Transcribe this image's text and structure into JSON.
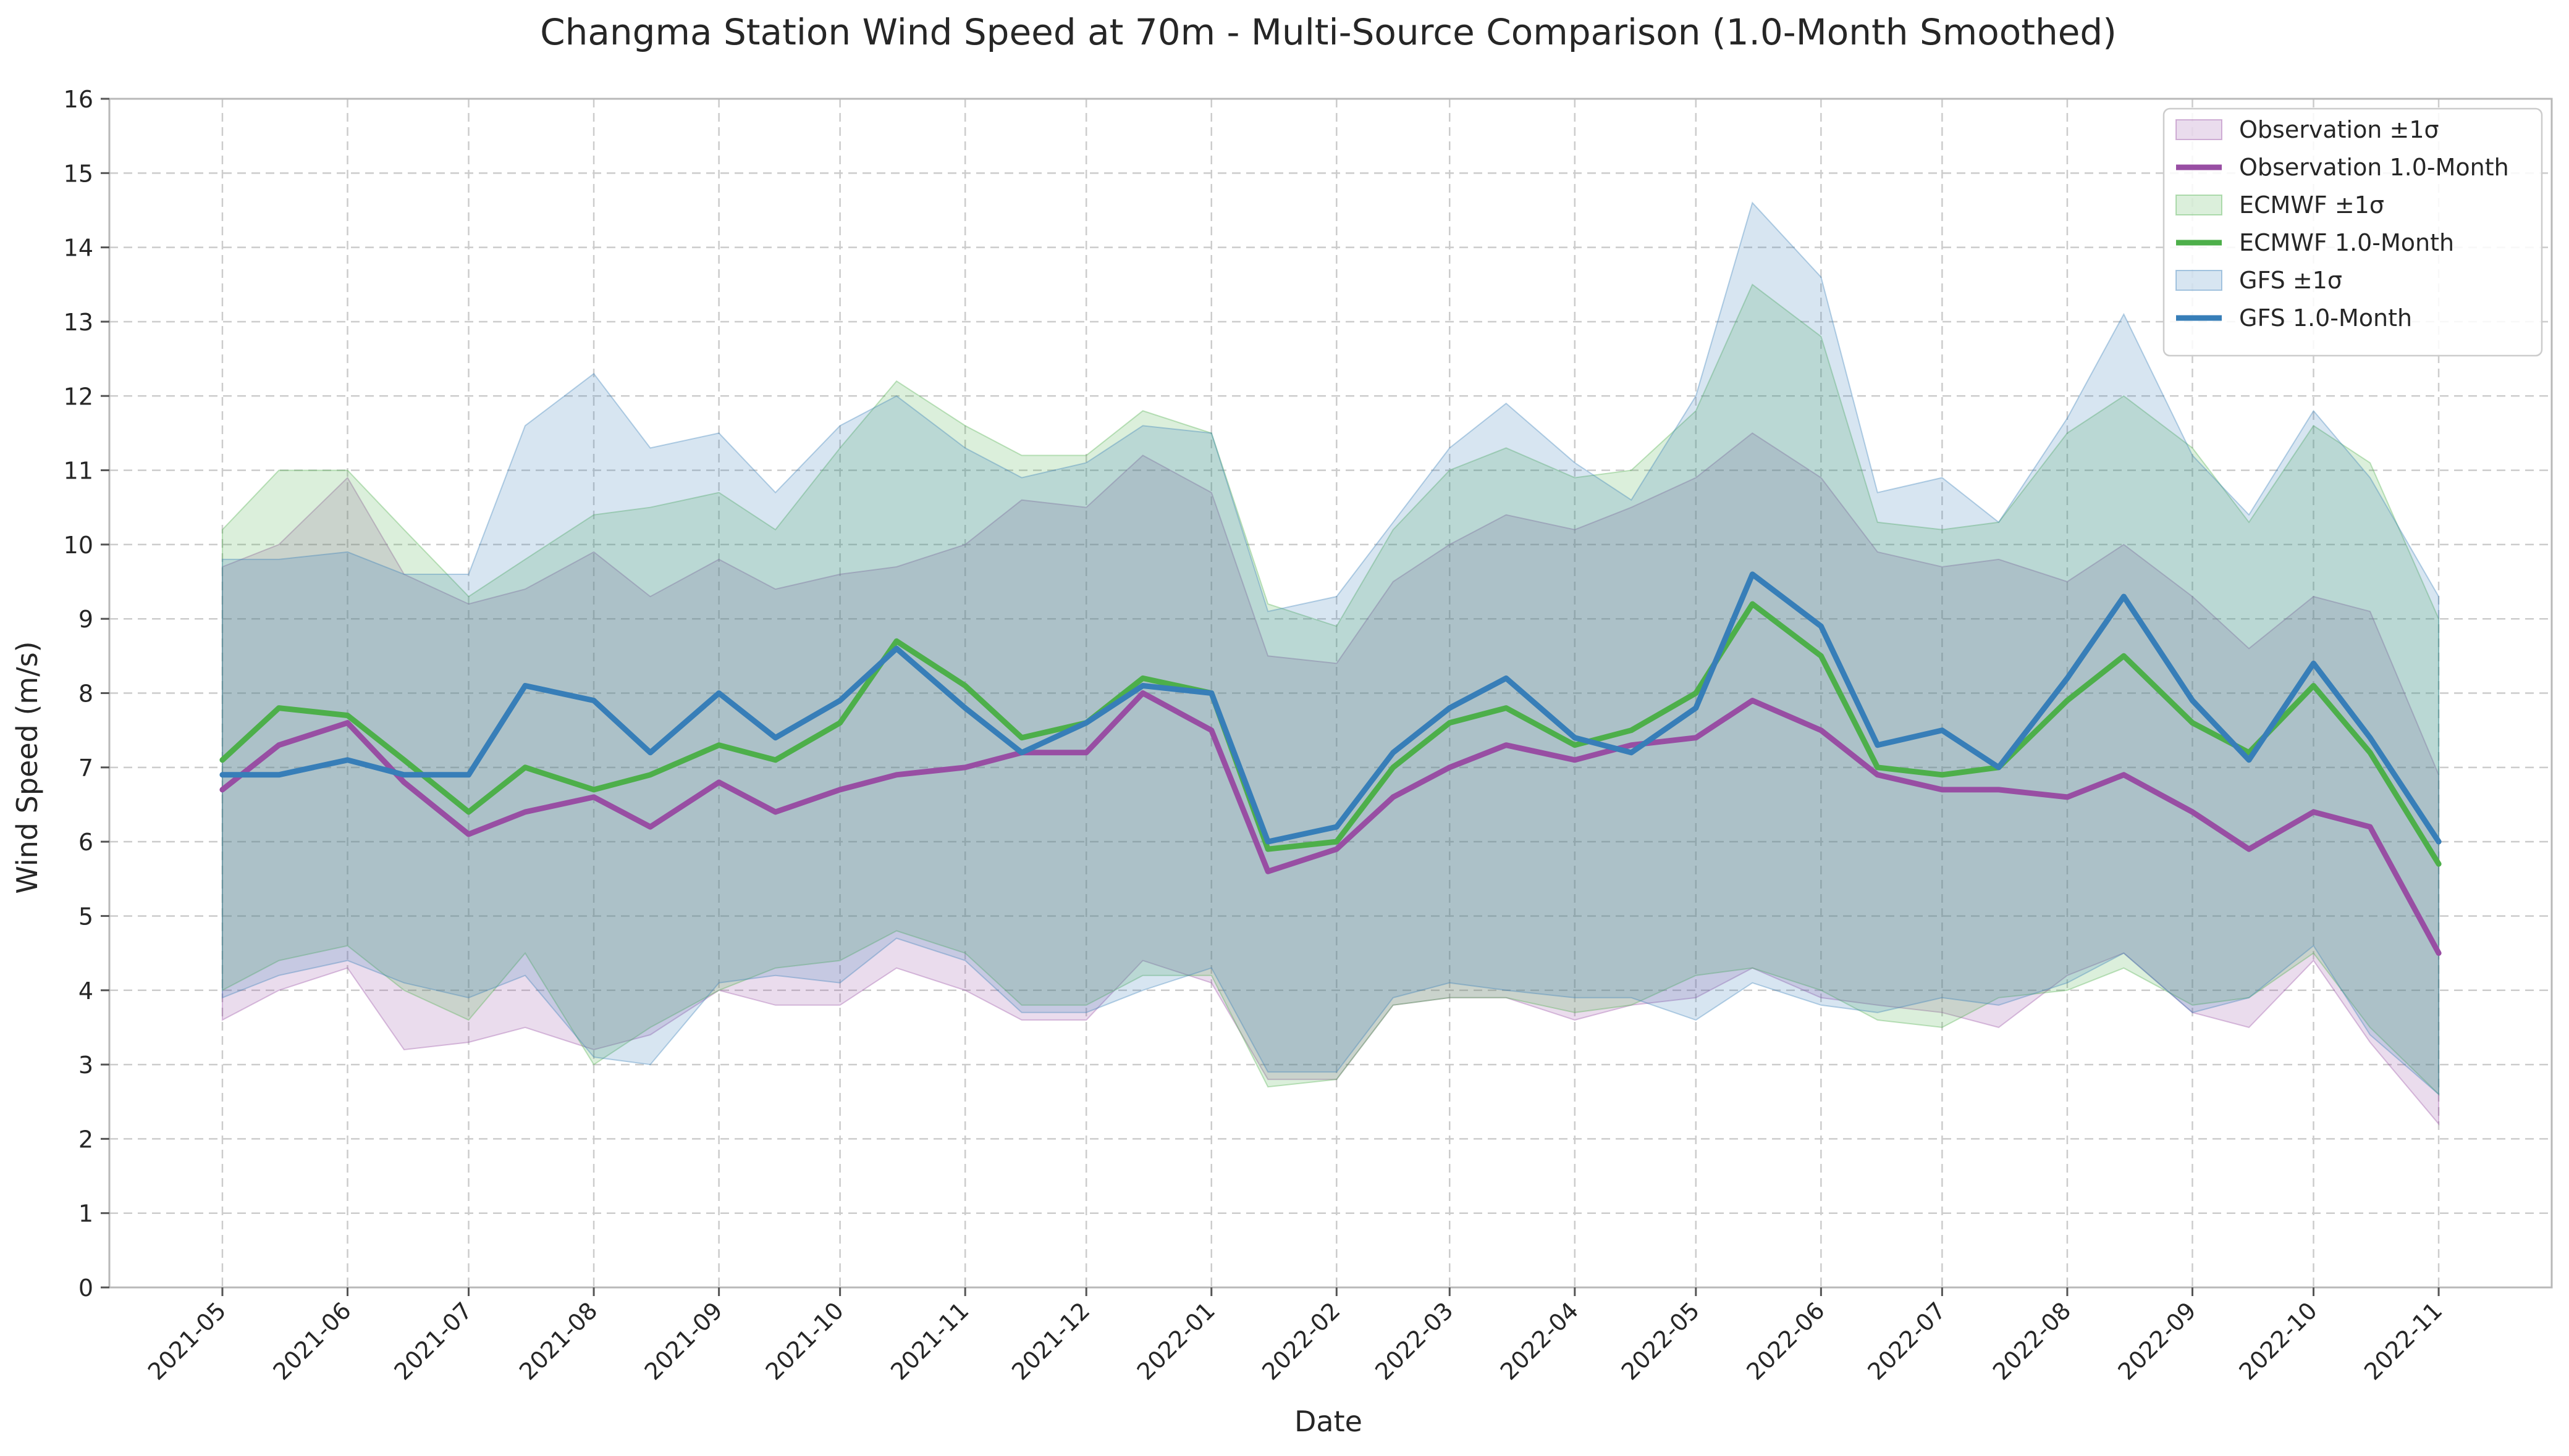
{
  "chart_data": {
    "type": "line",
    "title": "Changma Station Wind Speed at 70m - Multi-Source Comparison (1.0-Month Smoothed)",
    "xlabel": "Date",
    "ylabel": "Wind Speed (m/s)",
    "ylim": [
      0,
      16
    ],
    "yticks": [
      0,
      1,
      2,
      3,
      4,
      5,
      6,
      7,
      8,
      9,
      10,
      11,
      12,
      13,
      14,
      15,
      16
    ],
    "xlim": [
      "2021-04-03",
      "2022-11-29"
    ],
    "xticks": [
      "2021-05-01",
      "2021-06-01",
      "2021-07-01",
      "2021-08-01",
      "2021-09-01",
      "2021-10-01",
      "2021-11-01",
      "2021-12-01",
      "2022-01-01",
      "2022-02-01",
      "2022-03-01",
      "2022-04-01",
      "2022-05-01",
      "2022-06-01",
      "2022-07-01",
      "2022-08-01",
      "2022-09-01",
      "2022-10-01",
      "2022-11-01"
    ],
    "xtick_labels": [
      "2021-05",
      "2021-06",
      "2021-07",
      "2021-08",
      "2021-09",
      "2021-10",
      "2021-11",
      "2021-12",
      "2022-01",
      "2022-02",
      "2022-03",
      "2022-04",
      "2022-05",
      "2022-06",
      "2022-07",
      "2022-08",
      "2022-09",
      "2022-10",
      "2022-11"
    ],
    "grid": true,
    "legend_position": "top-right",
    "legend": [
      "Observation ±1σ",
      "Observation 1.0-Month",
      "ECMWF ±1σ",
      "ECMWF 1.0-Month",
      "GFS ±1σ",
      "GFS 1.0-Month"
    ],
    "series": [
      {
        "name": "Observation 1.0-Month",
        "band_name": "Observation ±1σ",
        "color": "#984ea3",
        "x": [
          "2021-05-01",
          "2021-05-15",
          "2021-06-01",
          "2021-06-15",
          "2021-07-01",
          "2021-07-15",
          "2021-08-01",
          "2021-08-15",
          "2021-09-01",
          "2021-09-15",
          "2021-10-01",
          "2021-10-15",
          "2021-11-01",
          "2021-11-15",
          "2021-12-01",
          "2021-12-15",
          "2022-01-01",
          "2022-01-15",
          "2022-02-01",
          "2022-02-15",
          "2022-03-01",
          "2022-03-15",
          "2022-04-01",
          "2022-04-15",
          "2022-05-01",
          "2022-05-15",
          "2022-06-01",
          "2022-06-15",
          "2022-07-01",
          "2022-07-15",
          "2022-08-01",
          "2022-08-15",
          "2022-09-01",
          "2022-09-15",
          "2022-10-01",
          "2022-10-15",
          "2022-11-01"
        ],
        "values": [
          6.7,
          7.3,
          7.6,
          6.8,
          6.1,
          6.4,
          6.6,
          6.2,
          6.8,
          6.4,
          6.7,
          6.9,
          7.0,
          7.2,
          7.2,
          8.0,
          7.5,
          5.6,
          5.9,
          6.6,
          7.0,
          7.3,
          7.1,
          7.3,
          7.4,
          7.9,
          7.5,
          6.9,
          6.7,
          6.7,
          6.6,
          6.9,
          6.4,
          5.9,
          6.4,
          6.2,
          4.5
        ],
        "lower": [
          3.6,
          4.0,
          4.3,
          3.2,
          3.3,
          3.5,
          3.2,
          3.4,
          4.0,
          3.8,
          3.8,
          4.3,
          4.0,
          3.6,
          3.6,
          4.4,
          4.1,
          2.8,
          2.8,
          3.8,
          3.9,
          3.9,
          3.6,
          3.8,
          3.9,
          4.3,
          3.9,
          3.8,
          3.7,
          3.5,
          4.2,
          4.5,
          3.7,
          3.5,
          4.4,
          3.3,
          2.2
        ],
        "upper": [
          9.7,
          10.0,
          10.9,
          9.6,
          9.2,
          9.4,
          9.9,
          9.3,
          9.8,
          9.4,
          9.6,
          9.7,
          10.0,
          10.6,
          10.5,
          11.2,
          10.7,
          8.5,
          8.4,
          9.5,
          10.0,
          10.4,
          10.2,
          10.5,
          10.9,
          11.5,
          10.9,
          9.9,
          9.7,
          9.8,
          9.5,
          10.0,
          9.3,
          8.6,
          9.3,
          9.1,
          6.9
        ]
      },
      {
        "name": "ECMWF 1.0-Month",
        "band_name": "ECMWF ±1σ",
        "color": "#4daf4a",
        "x": [
          "2021-05-01",
          "2021-05-15",
          "2021-06-01",
          "2021-06-15",
          "2021-07-01",
          "2021-07-15",
          "2021-08-01",
          "2021-08-15",
          "2021-09-01",
          "2021-09-15",
          "2021-10-01",
          "2021-10-15",
          "2021-11-01",
          "2021-11-15",
          "2021-12-01",
          "2021-12-15",
          "2022-01-01",
          "2022-01-15",
          "2022-02-01",
          "2022-02-15",
          "2022-03-01",
          "2022-03-15",
          "2022-04-01",
          "2022-04-15",
          "2022-05-01",
          "2022-05-15",
          "2022-06-01",
          "2022-06-15",
          "2022-07-01",
          "2022-07-15",
          "2022-08-01",
          "2022-08-15",
          "2022-09-01",
          "2022-09-15",
          "2022-10-01",
          "2022-10-15",
          "2022-11-01"
        ],
        "values": [
          7.1,
          7.8,
          7.7,
          7.1,
          6.4,
          7.0,
          6.7,
          6.9,
          7.3,
          7.1,
          7.6,
          8.7,
          8.1,
          7.4,
          7.6,
          8.2,
          8.0,
          5.9,
          6.0,
          7.0,
          7.6,
          7.8,
          7.3,
          7.5,
          8.0,
          9.2,
          8.5,
          7.0,
          6.9,
          7.0,
          7.9,
          8.5,
          7.6,
          7.2,
          8.1,
          7.2,
          5.7
        ],
        "lower": [
          4.0,
          4.4,
          4.6,
          4.0,
          3.6,
          4.5,
          3.0,
          3.5,
          4.0,
          4.3,
          4.4,
          4.8,
          4.5,
          3.8,
          3.8,
          4.2,
          4.2,
          2.7,
          2.8,
          3.8,
          3.9,
          3.9,
          3.7,
          3.8,
          4.2,
          4.3,
          4.0,
          3.6,
          3.5,
          3.9,
          4.0,
          4.3,
          3.8,
          3.9,
          4.5,
          3.5,
          2.6
        ],
        "upper": [
          10.2,
          11.0,
          11.0,
          10.2,
          9.3,
          9.8,
          10.4,
          10.5,
          10.7,
          10.2,
          11.3,
          12.2,
          11.6,
          11.2,
          11.2,
          11.8,
          11.5,
          9.2,
          8.9,
          10.2,
          11.0,
          11.3,
          10.9,
          11.0,
          11.8,
          13.5,
          12.8,
          10.3,
          10.2,
          10.3,
          11.5,
          12.0,
          11.3,
          10.3,
          11.6,
          11.1,
          9.0
        ]
      },
      {
        "name": "GFS 1.0-Month",
        "band_name": "GFS ±1σ",
        "color": "#377eb8",
        "x": [
          "2021-05-01",
          "2021-05-15",
          "2021-06-01",
          "2021-06-15",
          "2021-07-01",
          "2021-07-15",
          "2021-08-01",
          "2021-08-15",
          "2021-09-01",
          "2021-09-15",
          "2021-10-01",
          "2021-10-15",
          "2021-11-01",
          "2021-11-15",
          "2021-12-01",
          "2021-12-15",
          "2022-01-01",
          "2022-01-15",
          "2022-02-01",
          "2022-02-15",
          "2022-03-01",
          "2022-03-15",
          "2022-04-01",
          "2022-04-15",
          "2022-05-01",
          "2022-05-15",
          "2022-06-01",
          "2022-06-15",
          "2022-07-01",
          "2022-07-15",
          "2022-08-01",
          "2022-08-15",
          "2022-09-01",
          "2022-09-15",
          "2022-10-01",
          "2022-10-15",
          "2022-11-01"
        ],
        "values": [
          6.9,
          6.9,
          7.1,
          6.9,
          6.9,
          8.1,
          7.9,
          7.2,
          8.0,
          7.4,
          7.9,
          8.6,
          7.8,
          7.2,
          7.6,
          8.1,
          8.0,
          6.0,
          6.2,
          7.2,
          7.8,
          8.2,
          7.4,
          7.2,
          7.8,
          9.6,
          8.9,
          7.3,
          7.5,
          7.0,
          8.2,
          9.3,
          7.9,
          7.1,
          8.4,
          7.4,
          6.0
        ],
        "lower": [
          3.9,
          4.2,
          4.4,
          4.1,
          3.9,
          4.2,
          3.1,
          3.0,
          4.1,
          4.2,
          4.1,
          4.7,
          4.4,
          3.7,
          3.7,
          4.0,
          4.3,
          2.9,
          2.9,
          3.9,
          4.1,
          4.0,
          3.9,
          3.9,
          3.6,
          4.1,
          3.8,
          3.7,
          3.9,
          3.8,
          4.1,
          4.5,
          3.7,
          3.9,
          4.6,
          3.4,
          2.6
        ],
        "upper": [
          9.8,
          9.8,
          9.9,
          9.6,
          9.6,
          11.6,
          12.3,
          11.3,
          11.5,
          10.7,
          11.6,
          12.0,
          11.3,
          10.9,
          11.1,
          11.6,
          11.5,
          9.1,
          9.3,
          10.3,
          11.3,
          11.9,
          11.1,
          10.6,
          12.0,
          14.6,
          13.6,
          10.7,
          10.9,
          10.3,
          11.7,
          13.1,
          11.2,
          10.4,
          11.8,
          10.9,
          9.3
        ]
      }
    ]
  }
}
